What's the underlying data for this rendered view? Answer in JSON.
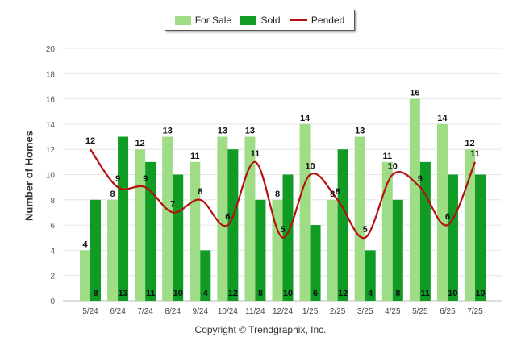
{
  "legend": {
    "for_sale": "For Sale",
    "sold": "Sold",
    "pended": "Pended"
  },
  "copyright": "Copyright © Trendgraphix, Inc.",
  "colors": {
    "for_sale": "#9edc86",
    "sold": "#0f9b24",
    "pended": "#b50f0f"
  },
  "chart_data": {
    "type": "bar",
    "ylabel": "Number of Homes",
    "ylim": [
      0,
      20
    ],
    "yticks": [
      0,
      2,
      4,
      6,
      8,
      10,
      12,
      14,
      16,
      18,
      20
    ],
    "categories": [
      "5/24",
      "6/24",
      "7/24",
      "8/24",
      "9/24",
      "10/24",
      "11/24",
      "12/24",
      "1/25",
      "2/25",
      "3/25",
      "4/25",
      "5/25",
      "6/25",
      "7/25"
    ],
    "series": [
      {
        "name": "For Sale",
        "type": "bar",
        "values": [
          4,
          8,
          12,
          13,
          11,
          13,
          13,
          8,
          14,
          8,
          13,
          11,
          16,
          14,
          12
        ]
      },
      {
        "name": "Sold",
        "type": "bar",
        "values": [
          8,
          13,
          11,
          10,
          4,
          12,
          8,
          10,
          6,
          12,
          4,
          8,
          11,
          10,
          10
        ]
      },
      {
        "name": "Pended",
        "type": "line",
        "values": [
          12,
          9,
          9,
          7,
          8,
          6,
          11,
          5,
          10,
          8,
          5,
          10,
          9,
          6,
          11
        ]
      }
    ],
    "grid": true,
    "legend_position": "top-center"
  }
}
